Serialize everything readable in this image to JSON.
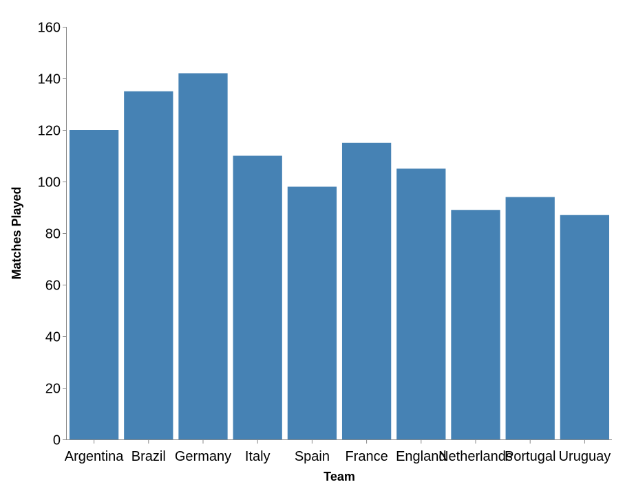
{
  "chart_data": {
    "type": "bar",
    "title": "",
    "xlabel": "Team",
    "ylabel": "Matches Played",
    "categories": [
      "Argentina",
      "Brazil",
      "Germany",
      "Italy",
      "Spain",
      "France",
      "England",
      "Netherlands",
      "Portugal",
      "Uruguay"
    ],
    "values": [
      120,
      135,
      142,
      110,
      98,
      115,
      105,
      89,
      94,
      87
    ],
    "ylim": [
      0,
      160
    ],
    "yticks": [
      0,
      20,
      40,
      60,
      80,
      100,
      120,
      140,
      160
    ],
    "grid": false,
    "bar_color": "#4682b4",
    "axis_color": "#888888"
  }
}
